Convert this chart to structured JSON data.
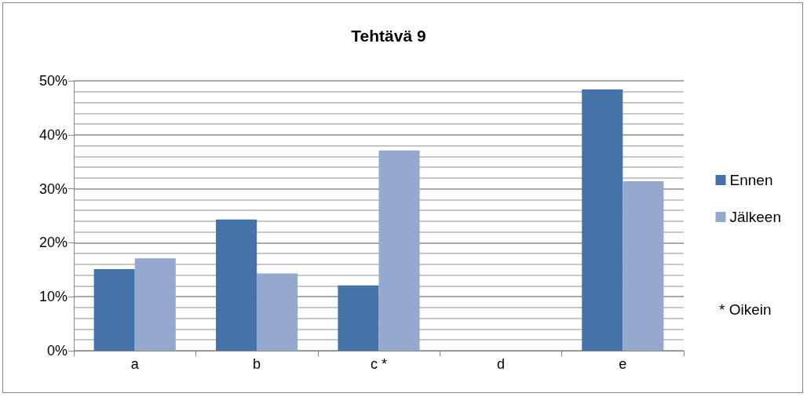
{
  "chart_data": {
    "type": "bar",
    "title": "Tehtävä 9",
    "categories": [
      "a",
      "b",
      "c *",
      "d",
      "e"
    ],
    "series": [
      {
        "name": "Ennen",
        "color": "#4573a7",
        "values": [
          15.1,
          24.3,
          12.1,
          0,
          48.4
        ]
      },
      {
        "name": "Jälkeen",
        "color": "#95a9cf",
        "values": [
          17.1,
          14.3,
          37.1,
          0,
          31.4
        ]
      }
    ],
    "ylim": [
      0,
      50
    ],
    "yticks": [
      {
        "value": 0,
        "label": "0%"
      },
      {
        "value": 2,
        "label": null
      },
      {
        "value": 4,
        "label": null
      },
      {
        "value": 6,
        "label": null
      },
      {
        "value": 8,
        "label": null
      },
      {
        "value": 10,
        "label": "10%"
      },
      {
        "value": 12,
        "label": null
      },
      {
        "value": 14,
        "label": null
      },
      {
        "value": 16,
        "label": null
      },
      {
        "value": 18,
        "label": null
      },
      {
        "value": 20,
        "label": "20%"
      },
      {
        "value": 22,
        "label": null
      },
      {
        "value": 24,
        "label": null
      },
      {
        "value": 26,
        "label": null
      },
      {
        "value": 28,
        "label": null
      },
      {
        "value": 30,
        "label": "30%"
      },
      {
        "value": 32,
        "label": null
      },
      {
        "value": 34,
        "label": null
      },
      {
        "value": 36,
        "label": null
      },
      {
        "value": 38,
        "label": null
      },
      {
        "value": 40,
        "label": "40%"
      },
      {
        "value": 42,
        "label": null
      },
      {
        "value": 44,
        "label": null
      },
      {
        "value": 46,
        "label": null
      },
      {
        "value": 48,
        "label": null
      },
      {
        "value": 50,
        "label": "50%"
      }
    ],
    "grid": true,
    "legend": "right",
    "annotations": [
      "* Oikein"
    ]
  }
}
